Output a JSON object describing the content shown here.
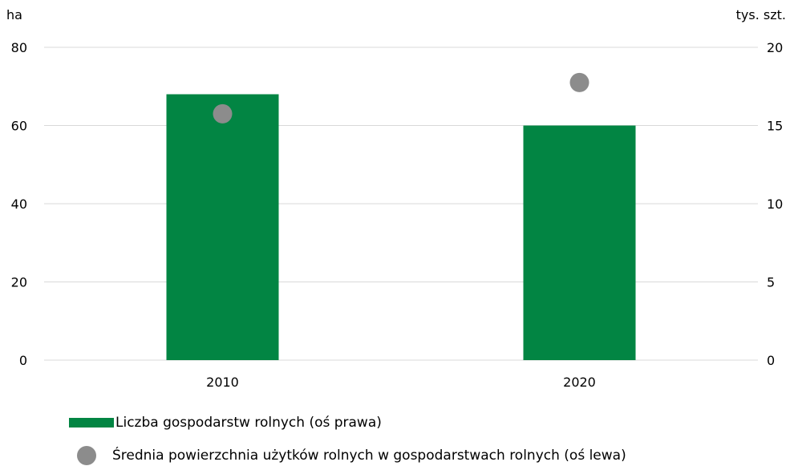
{
  "chart_data": {
    "type": "bar",
    "categories": [
      "2010",
      "2020"
    ],
    "left_axis": {
      "unit": "ha",
      "ticks": [
        "0",
        "20",
        "40",
        "60",
        "80"
      ],
      "range": [
        0,
        80
      ]
    },
    "right_axis": {
      "unit": "tys. szt.",
      "ticks": [
        "0",
        "5",
        "10",
        "15",
        "20"
      ],
      "range": [
        0,
        20
      ]
    },
    "series": [
      {
        "name": "Liczba gospodarstw rolnych (oś prawa)",
        "kind": "bar",
        "axis": "right",
        "color": "#028543",
        "values": [
          17.0,
          15.0
        ]
      },
      {
        "name": "Średnia powierzchnia użytków rolnych w gospodarstwach rolnych (oś lewa)",
        "kind": "point",
        "axis": "left",
        "color": "#8c8c8c",
        "values": [
          63.0,
          71.0
        ]
      }
    ],
    "grid": true,
    "legend_position": "bottom-left"
  }
}
